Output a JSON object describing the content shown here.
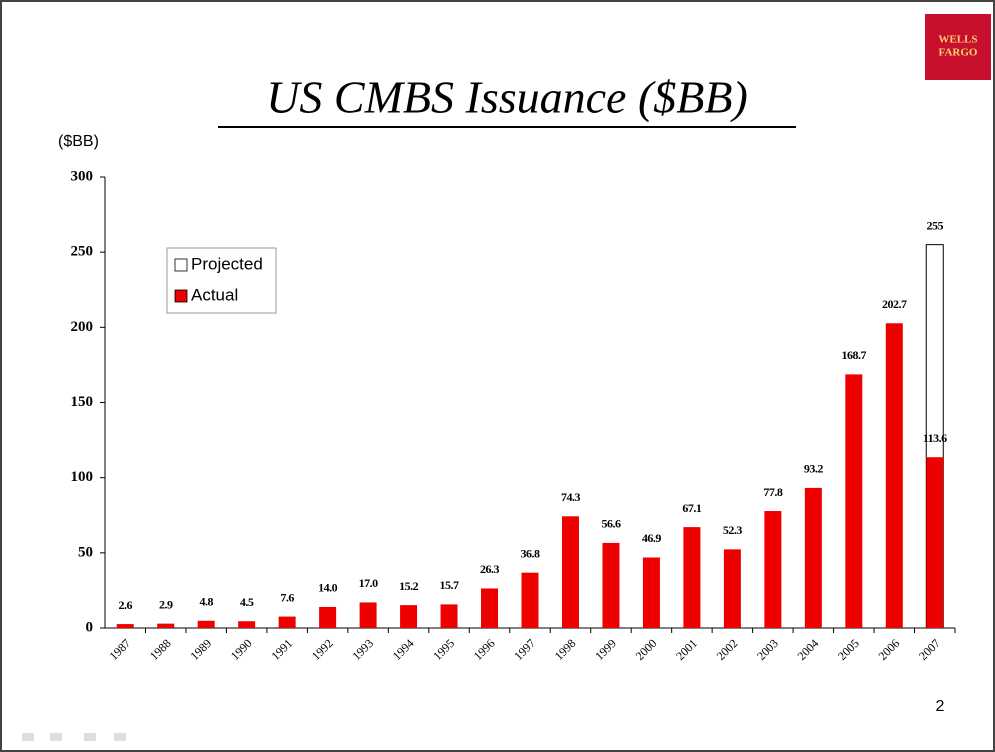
{
  "chart_data": {
    "type": "bar",
    "title": "US CMBS Issuance ($BB)",
    "y_label": "($BB)",
    "logo": [
      "WELLS",
      "FARGO"
    ],
    "page_number": "2",
    "categories": [
      "1987",
      "1988",
      "1989",
      "1990",
      "1991",
      "1992",
      "1993",
      "1994",
      "1995",
      "1996",
      "1997",
      "1998",
      "1999",
      "2000",
      "2001",
      "2002",
      "2003",
      "2004",
      "2005",
      "2006",
      "2007"
    ],
    "series": [
      {
        "name": "Projected",
        "color": "#ffffff",
        "values": [
          null,
          null,
          null,
          null,
          null,
          null,
          null,
          null,
          null,
          null,
          null,
          null,
          null,
          null,
          null,
          null,
          null,
          null,
          null,
          null,
          255
        ]
      },
      {
        "name": "Actual",
        "color": "#ee0000",
        "values": [
          2.6,
          2.9,
          4.8,
          4.5,
          7.6,
          14.0,
          17.0,
          15.2,
          15.7,
          26.3,
          36.8,
          74.3,
          56.6,
          46.9,
          67.1,
          52.3,
          77.8,
          93.2,
          168.7,
          202.7,
          113.6
        ],
        "value_labels": [
          "2.6",
          "2.9",
          "4.8",
          "4.5",
          "7.6",
          "14.0",
          "17.0",
          "15.2",
          "15.7",
          "26.3",
          "36.8",
          "74.3",
          "56.6",
          "46.9",
          "67.1",
          "52.3",
          "77.8",
          "93.2",
          "168.7",
          "202.7",
          "113.6"
        ]
      }
    ],
    "ylim": [
      0,
      300
    ],
    "yticks": [
      0,
      50,
      100,
      150,
      200,
      250,
      300
    ],
    "legend": "upper left",
    "grid": false
  }
}
